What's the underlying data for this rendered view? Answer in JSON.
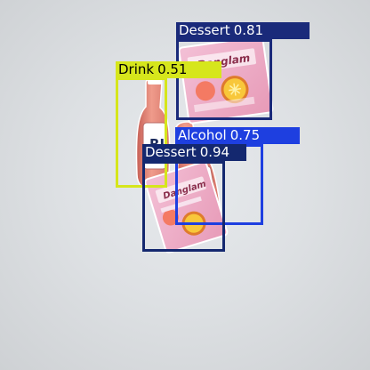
{
  "detections": [
    {
      "label": "Dessert",
      "score": "0.81",
      "color": "#1a2a7a",
      "text_color": "#ffffff"
    },
    {
      "label": "Drink",
      "score": "0.51",
      "color": "#d6e61c",
      "text_color": "#000000"
    },
    {
      "label": "Alcohol",
      "score": "0.75",
      "color": "#1e3fe0",
      "text_color": "#ffffff"
    },
    {
      "label": "Dessert",
      "score": "0.94",
      "color": "#14286f",
      "text_color": "#ffffff"
    }
  ],
  "objects": {
    "bottle_text": "RJ",
    "box_text": "Danglam"
  }
}
